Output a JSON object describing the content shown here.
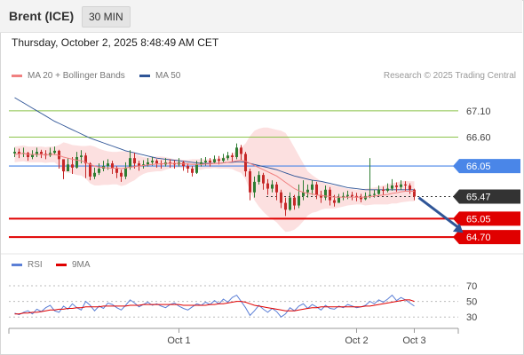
{
  "header": {
    "symbol": "Brent (ICE)",
    "timeframe": "30 MIN"
  },
  "datetime": "Thursday, October 2, 2025 8:48:49 AM CET",
  "legend": {
    "ma20": {
      "label": "MA 20 + Bollinger Bands",
      "color": "#f08080"
    },
    "ma50": {
      "label": "MA 50",
      "color": "#2f5597"
    }
  },
  "credit": "Research © 2025 Trading Central",
  "rsi_legend": {
    "rsi": {
      "label": "RSI",
      "color": "#5b7fd6"
    },
    "ma": {
      "label": "9MA",
      "color": "#e00000"
    }
  },
  "chart_data": [
    {
      "type": "candlestick",
      "ylim": [
        64.55,
        67.35
      ],
      "y_ticks": [
        "67.10",
        "66.60"
      ],
      "levels": [
        {
          "value": 67.1,
          "label": "67.10",
          "color": "#8bc34a",
          "style": "line"
        },
        {
          "value": 66.6,
          "label": "66.60",
          "color": "#8bc34a",
          "style": "line"
        },
        {
          "value": 66.05,
          "label": "66.05",
          "color": "#4a86e8",
          "style": "tag"
        },
        {
          "value": 65.47,
          "label": "65.47",
          "color": "#333333",
          "style": "tag-dotted"
        },
        {
          "value": 65.05,
          "label": "65.05",
          "color": "#e00000",
          "style": "tag"
        },
        {
          "value": 64.7,
          "label": "64.70",
          "color": "#e00000",
          "style": "tag"
        }
      ],
      "x_labels": [
        {
          "label": "Oct 1",
          "index": 37
        },
        {
          "label": "Oct 2",
          "index": 77
        },
        {
          "label": "Oct 3",
          "index": 90
        }
      ],
      "n_slots": 100,
      "closes": [
        66.32,
        66.28,
        66.3,
        66.22,
        66.26,
        66.32,
        66.28,
        66.25,
        66.3,
        66.34,
        66.18,
        65.95,
        66.08,
        66.02,
        66.22,
        66.25,
        66.1,
        65.85,
        65.92,
        66.0,
        66.05,
        66.1,
        66.0,
        65.92,
        65.85,
        66.02,
        66.2,
        66.1,
        66.05,
        66.08,
        66.12,
        66.15,
        66.1,
        66.08,
        66.12,
        66.1,
        66.08,
        66.12,
        66.05,
        66.0,
        65.92,
        66.08,
        66.12,
        66.15,
        66.12,
        66.18,
        66.15,
        66.2,
        66.25,
        66.22,
        66.4,
        66.28,
        65.95,
        65.55,
        65.75,
        65.88,
        65.72,
        65.62,
        65.7,
        65.55,
        65.35,
        65.22,
        65.45,
        65.3,
        65.48,
        65.55,
        65.6,
        65.7,
        65.5,
        65.45,
        65.6,
        65.4,
        65.35,
        65.45,
        65.48,
        65.5,
        65.48,
        65.45,
        65.42,
        65.48,
        65.5,
        65.52,
        65.6,
        65.58,
        65.62,
        65.68,
        65.65,
        65.7,
        65.68,
        65.6,
        65.47
      ],
      "highs": [
        66.4,
        66.38,
        66.4,
        66.32,
        66.35,
        66.4,
        66.36,
        66.35,
        66.4,
        66.42,
        66.36,
        66.15,
        66.2,
        66.22,
        66.32,
        66.35,
        66.3,
        66.12,
        66.02,
        66.1,
        66.15,
        66.18,
        66.15,
        66.05,
        65.98,
        66.12,
        66.35,
        66.3,
        66.15,
        66.16,
        66.2,
        66.22,
        66.18,
        66.16,
        66.2,
        66.18,
        66.16,
        66.2,
        66.15,
        66.1,
        66.05,
        66.15,
        66.2,
        66.22,
        66.2,
        66.25,
        66.24,
        66.28,
        66.32,
        66.3,
        66.48,
        66.45,
        66.32,
        66.0,
        65.85,
        65.95,
        65.92,
        65.8,
        65.78,
        65.75,
        65.6,
        65.45,
        65.55,
        65.5,
        65.7,
        65.78,
        65.7,
        65.78,
        65.75,
        65.58,
        65.68,
        65.65,
        65.5,
        65.52,
        65.55,
        65.58,
        65.56,
        65.54,
        65.52,
        65.55,
        66.2,
        65.6,
        65.68,
        65.66,
        65.72,
        65.8,
        65.74,
        65.78,
        65.76,
        65.72,
        65.62
      ],
      "lows": [
        66.22,
        66.2,
        66.22,
        66.15,
        66.18,
        66.22,
        66.2,
        66.18,
        66.22,
        66.26,
        66.0,
        65.8,
        65.95,
        65.9,
        66.0,
        66.1,
        65.82,
        65.78,
        65.8,
        65.88,
        65.95,
        65.98,
        65.9,
        65.82,
        65.75,
        65.8,
        65.98,
        66.0,
        65.96,
        66.0,
        66.04,
        66.06,
        66.02,
        66.0,
        66.04,
        66.02,
        66.0,
        66.04,
        65.96,
        65.92,
        65.85,
        65.9,
        66.04,
        66.06,
        66.04,
        66.1,
        66.08,
        66.12,
        66.16,
        66.14,
        66.18,
        66.15,
        65.85,
        65.4,
        65.45,
        65.7,
        65.6,
        65.5,
        65.55,
        65.4,
        65.25,
        65.1,
        65.2,
        65.22,
        65.25,
        65.4,
        65.45,
        65.5,
        65.42,
        65.35,
        65.4,
        65.3,
        65.28,
        65.36,
        65.4,
        65.42,
        65.4,
        65.38,
        65.36,
        65.4,
        65.44,
        65.45,
        65.5,
        65.5,
        65.55,
        65.58,
        65.56,
        65.6,
        65.58,
        65.52,
        65.4
      ],
      "ma20": [
        66.27,
        66.28,
        66.29,
        66.27,
        66.27,
        66.27,
        66.27,
        66.26,
        66.27,
        66.27,
        66.25,
        66.22,
        66.2,
        66.18,
        66.16,
        66.15,
        66.12,
        66.08,
        66.05,
        66.03,
        66.02,
        66.01,
        66.01,
        66.01,
        66.0,
        66.01,
        66.03,
        66.04,
        66.05,
        66.06,
        66.07,
        66.08,
        66.09,
        66.09,
        66.1,
        66.1,
        66.1,
        66.1,
        66.09,
        66.09,
        66.08,
        66.08,
        66.08,
        66.09,
        66.09,
        66.1,
        66.1,
        66.11,
        66.12,
        66.13,
        66.15,
        66.16,
        66.14,
        66.1,
        66.06,
        66.02,
        65.98,
        65.94,
        65.9,
        65.86,
        65.8,
        65.74,
        65.68,
        65.62,
        65.58,
        65.55,
        65.53,
        65.52,
        65.5,
        65.49,
        65.48,
        65.47,
        65.46,
        65.46,
        65.46,
        65.46,
        65.46,
        65.46,
        65.46,
        65.46,
        65.47,
        65.48,
        65.49,
        65.5,
        65.51,
        65.53,
        65.54,
        65.56,
        65.57,
        65.57,
        65.57
      ],
      "bb_upper": [
        66.42,
        66.43,
        66.44,
        66.42,
        66.42,
        66.42,
        66.42,
        66.41,
        66.42,
        66.42,
        66.45,
        66.5,
        66.48,
        66.45,
        66.44,
        66.43,
        66.43,
        66.44,
        66.42,
        66.38,
        66.35,
        66.33,
        66.32,
        66.32,
        66.33,
        66.33,
        66.32,
        66.3,
        66.25,
        66.22,
        66.21,
        66.22,
        66.23,
        66.23,
        66.22,
        66.2,
        66.18,
        66.18,
        66.17,
        66.17,
        66.18,
        66.18,
        66.18,
        66.18,
        66.18,
        66.19,
        66.2,
        66.22,
        66.24,
        66.27,
        66.35,
        66.4,
        66.48,
        66.62,
        66.72,
        66.76,
        66.78,
        66.78,
        66.76,
        66.74,
        66.72,
        66.68,
        66.55,
        66.4,
        66.25,
        66.1,
        65.95,
        65.88,
        65.82,
        65.76,
        65.72,
        65.7,
        65.68,
        65.66,
        65.64,
        65.62,
        65.61,
        65.6,
        65.6,
        65.62,
        65.63,
        65.64,
        65.66,
        65.68,
        65.7,
        65.72,
        65.74,
        65.76,
        65.77,
        65.76,
        65.76
      ],
      "bb_lower": [
        66.12,
        66.13,
        66.14,
        66.12,
        66.12,
        66.12,
        66.12,
        66.11,
        66.12,
        66.12,
        66.05,
        65.94,
        65.92,
        65.91,
        65.88,
        65.87,
        65.81,
        65.72,
        65.68,
        65.68,
        65.69,
        65.69,
        65.7,
        65.7,
        65.67,
        65.69,
        65.74,
        65.78,
        65.85,
        65.9,
        65.93,
        65.94,
        65.95,
        65.95,
        65.98,
        66.0,
        66.02,
        66.02,
        66.01,
        66.01,
        65.98,
        65.98,
        65.98,
        66.0,
        66.0,
        66.01,
        66.0,
        66.0,
        66.0,
        65.99,
        65.95,
        65.92,
        65.8,
        65.58,
        65.4,
        65.28,
        65.18,
        65.1,
        65.04,
        64.98,
        64.88,
        64.8,
        64.81,
        64.84,
        64.91,
        65.0,
        65.11,
        65.16,
        65.18,
        65.22,
        65.24,
        65.24,
        65.24,
        65.26,
        65.28,
        65.3,
        65.31,
        65.32,
        65.32,
        65.3,
        65.31,
        65.32,
        65.32,
        65.32,
        65.32,
        65.34,
        65.34,
        65.36,
        65.37,
        65.38,
        65.38
      ],
      "ma50": [
        67.35,
        67.3,
        67.25,
        67.2,
        67.15,
        67.1,
        67.05,
        67.0,
        66.95,
        66.9,
        66.86,
        66.82,
        66.78,
        66.74,
        66.7,
        66.66,
        66.62,
        66.58,
        66.55,
        66.52,
        66.49,
        66.46,
        66.43,
        66.4,
        66.37,
        66.34,
        66.32,
        66.3,
        66.28,
        66.26,
        66.24,
        66.22,
        66.2,
        66.19,
        66.18,
        66.17,
        66.16,
        66.15,
        66.14,
        66.13,
        66.12,
        66.11,
        66.1,
        66.1,
        66.1,
        66.1,
        66.1,
        66.11,
        66.12,
        66.12,
        66.13,
        66.13,
        66.12,
        66.1,
        66.08,
        66.06,
        66.04,
        66.02,
        66.0,
        65.98,
        65.95,
        65.92,
        65.89,
        65.86,
        65.84,
        65.82,
        65.8,
        65.78,
        65.77,
        65.76,
        65.74,
        65.72,
        65.7,
        65.68,
        65.66,
        65.64,
        65.63,
        65.62,
        65.61,
        65.6,
        65.6,
        65.6,
        65.6,
        65.6,
        65.6,
        65.6,
        65.6,
        65.6,
        65.6,
        65.6,
        65.6
      ],
      "forecast_arrow": {
        "from_index": 91,
        "from_value": 65.45,
        "to_index": 101,
        "to_value": 64.78,
        "color": "#2f5597"
      }
    },
    {
      "type": "line",
      "ylim": [
        20,
        78
      ],
      "y_ticks": [
        "70",
        "50",
        "30"
      ],
      "series": [
        {
          "name": "RSI",
          "color": "#5b7fd6",
          "values": [
            35,
            33,
            36,
            38,
            34,
            40,
            37,
            42,
            45,
            38,
            36,
            44,
            40,
            47,
            42,
            39,
            50,
            45,
            38,
            44,
            41,
            48,
            46,
            42,
            39,
            45,
            52,
            48,
            43,
            46,
            49,
            45,
            47,
            44,
            42,
            46,
            48,
            44,
            41,
            39,
            43,
            47,
            45,
            49,
            46,
            51,
            47,
            53,
            49,
            55,
            58,
            50,
            42,
            32,
            38,
            45,
            40,
            36,
            41,
            37,
            30,
            34,
            42,
            38,
            44,
            47,
            41,
            46,
            43,
            39,
            45,
            41,
            40,
            44,
            42,
            46,
            44,
            42,
            43,
            45,
            50,
            47,
            52,
            49,
            53,
            58,
            51,
            55,
            52,
            48,
            44
          ]
        },
        {
          "name": "9MA",
          "color": "#e00000",
          "values": [
            34,
            34,
            35,
            35,
            36,
            36,
            37,
            38,
            39,
            39,
            40,
            40,
            41,
            41,
            42,
            42,
            43,
            43,
            43,
            43,
            44,
            44,
            44,
            44,
            44,
            44,
            45,
            45,
            45,
            46,
            46,
            46,
            46,
            46,
            46,
            46,
            46,
            46,
            45,
            45,
            45,
            45,
            45,
            45,
            46,
            46,
            47,
            47,
            48,
            49,
            50,
            50,
            49,
            47,
            45,
            44,
            43,
            42,
            41,
            40,
            39,
            38,
            38,
            38,
            39,
            40,
            41,
            42,
            42,
            43,
            43,
            43,
            43,
            43,
            43,
            43,
            43,
            43,
            43,
            44,
            44,
            45,
            46,
            47,
            48,
            49,
            50,
            51,
            52,
            52,
            50
          ]
        }
      ]
    }
  ]
}
